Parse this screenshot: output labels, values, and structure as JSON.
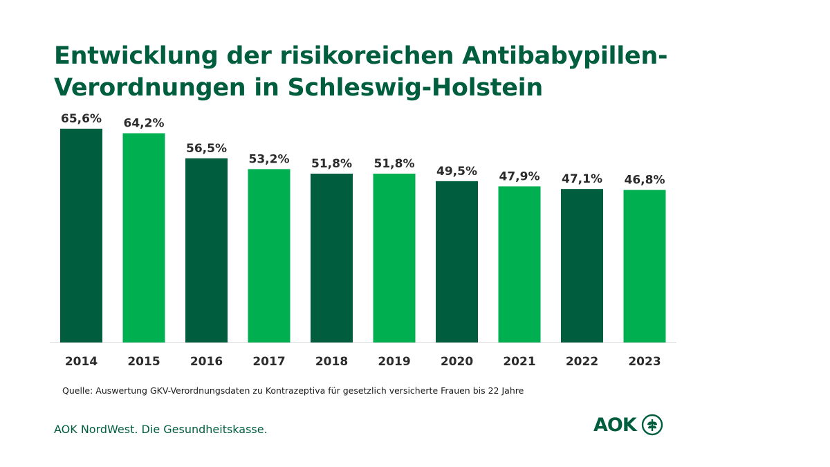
{
  "header": {
    "title_line1": "Entwicklung der risikoreichen Antibabypillen-",
    "title_line2": "Verordnungen in Schleswig-Holstein"
  },
  "chart_data": {
    "type": "bar",
    "title": "Entwicklung der risikoreichen Antibabypillen-Verordnungen in Schleswig-Holstein",
    "categories": [
      "2014",
      "2015",
      "2016",
      "2017",
      "2018",
      "2019",
      "2020",
      "2021",
      "2022",
      "2023"
    ],
    "values": [
      65.6,
      64.2,
      56.5,
      53.2,
      51.8,
      51.8,
      49.5,
      47.9,
      47.1,
      46.8
    ],
    "value_labels": [
      "65,6%",
      "64,2%",
      "56,5%",
      "53,2%",
      "51,8%",
      "51,8%",
      "49,5%",
      "47,9%",
      "47,1%",
      "46,8%"
    ],
    "unit": "%",
    "ylim": [
      0,
      65.6
    ],
    "grid": false,
    "legend": "none",
    "colors": [
      "#005e3f",
      "#00b050"
    ]
  },
  "footer": {
    "source": "Quelle: Auswertung GKV-Verordnungsdaten zu Kontrazeptiva für gesetzlich versicherte Frauen bis 22 Jahre",
    "brand": "AOK NordWest. Die Gesundheitskasse.",
    "logo_text": "AOK"
  }
}
